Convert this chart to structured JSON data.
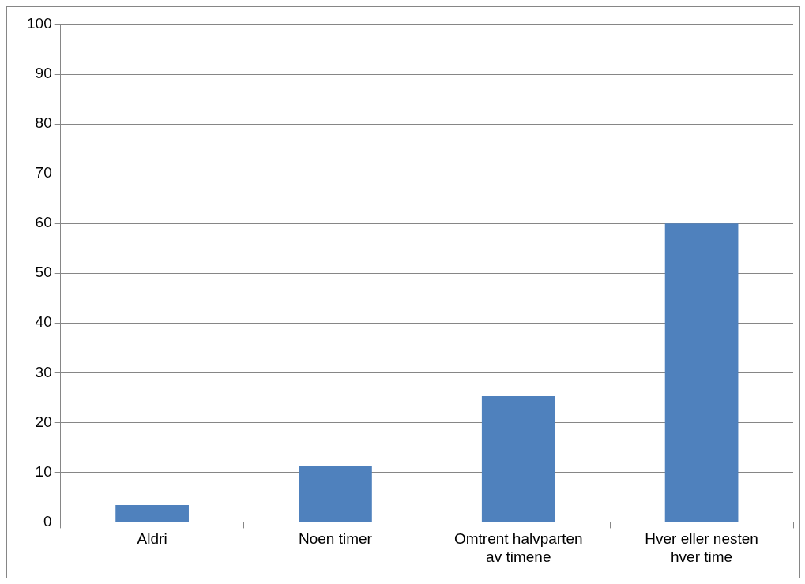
{
  "chart_data": {
    "type": "bar",
    "categories": [
      "Aldri",
      "Noen timer",
      "Omtrent halvparten av timene",
      "Hver eller nesten hver time"
    ],
    "values": [
      3.4,
      11.2,
      25.3,
      60
    ],
    "color": "#4f81bd",
    "ylim": [
      0,
      100
    ],
    "yticks": [
      0,
      10,
      20,
      30,
      40,
      50,
      60,
      70,
      80,
      90,
      100
    ],
    "grid": "y"
  }
}
